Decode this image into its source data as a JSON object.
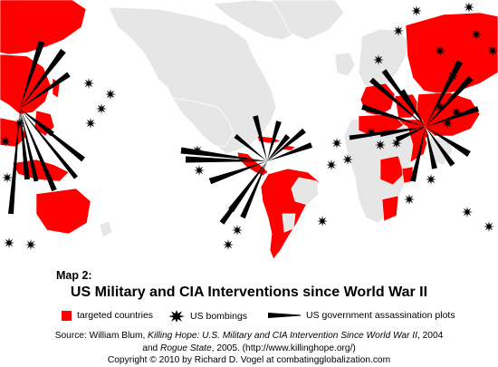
{
  "map": {
    "label": "Map 2:",
    "title": "US Military and CIA Interventions since World War II",
    "colors": {
      "targeted": "#ff0000",
      "land": "#e6e6e6",
      "border": "#ffffff",
      "water": "#ffffff",
      "marks": "#000000"
    }
  },
  "legend": {
    "targeted": "targeted countries",
    "bombings": "US bombings",
    "assassinations": "US government assassination plots",
    "icons": {
      "targeted": "red-square",
      "bombings": "explosion-icon",
      "assassinations": "wedge-icon"
    }
  },
  "source": {
    "line1_prefix": "Source:  William Blum, ",
    "line1_title": "Killing Hope: U.S. Military and CIA Intervention Since World War II",
    "line1_suffix": ", 2004",
    "line2_prefix": "and ",
    "line2_title": "Rogue State",
    "line2_suffix": ", 2005. (http://www.killinghope.org/)",
    "copyright": "Copyright  ©  2010 by Richard D. Vogel at combatingglobalization.com"
  }
}
